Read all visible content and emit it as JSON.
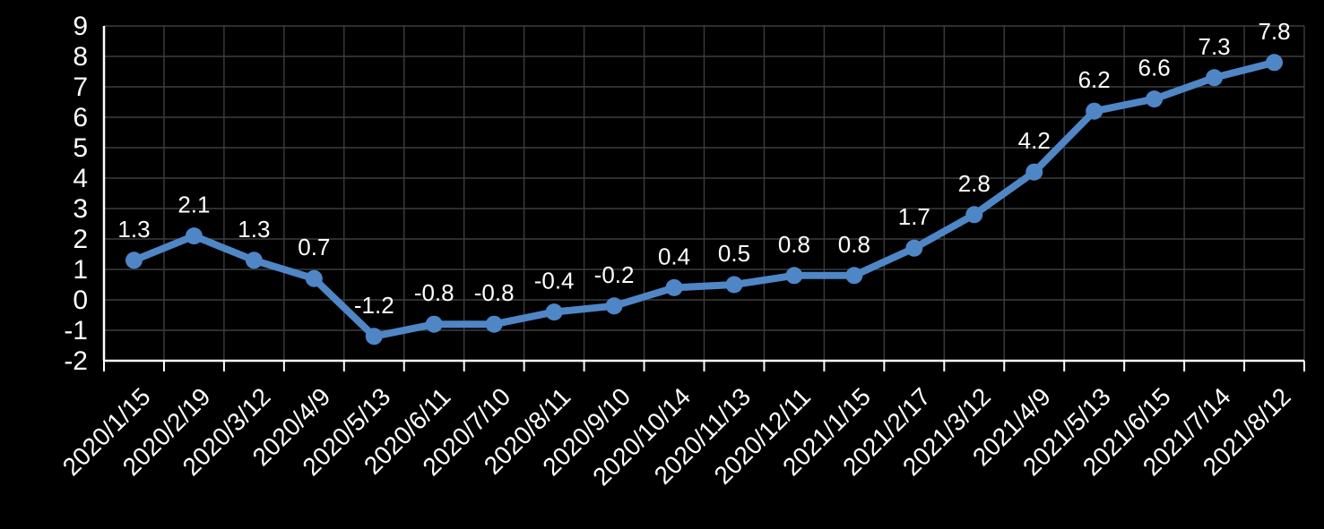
{
  "chart_data": {
    "type": "line",
    "title": "",
    "xlabel": "",
    "ylabel": "",
    "categories": [
      "2020/1/15",
      "2020/2/19",
      "2020/3/12",
      "2020/4/9",
      "2020/5/13",
      "2020/6/11",
      "2020/7/10",
      "2020/8/11",
      "2020/9/10",
      "2020/10/14",
      "2020/11/13",
      "2020/12/11",
      "2021/1/15",
      "2021/2/17",
      "2021/3/12",
      "2021/4/9",
      "2021/5/13",
      "2021/6/15",
      "2021/7/14",
      "2021/8/12"
    ],
    "series": [
      {
        "name": "value",
        "values": [
          1.3,
          2.1,
          1.3,
          0.7,
          -1.2,
          -0.8,
          -0.8,
          -0.4,
          -0.2,
          0.4,
          0.5,
          0.8,
          0.8,
          1.7,
          2.8,
          4.2,
          6.2,
          6.6,
          7.3,
          7.8
        ]
      }
    ],
    "data_labels": [
      "1.3",
      "2.1",
      "1.3",
      "0.7",
      "-1.2",
      "-0.8",
      "-0.8",
      "-0.4",
      "-0.2",
      "0.4",
      "0.5",
      "0.8",
      "0.8",
      "1.7",
      "2.8",
      "4.2",
      "6.2",
      "6.6",
      "7.3",
      "7.8"
    ],
    "yticks": [
      "-2",
      "-1",
      "0",
      "1",
      "2",
      "3",
      "4",
      "5",
      "6",
      "7",
      "8",
      "9"
    ],
    "ylim": [
      -2,
      9
    ],
    "ytick_interval": 1,
    "grid": true,
    "legend": "none",
    "marker": "circle",
    "x_label_rotation_deg": 45
  },
  "colors": {
    "background": "#000000",
    "series_line": "#4F86C6",
    "series_marker": "#4F86C6",
    "gridline": "#3D3D3D",
    "axis_line": "#FFFFFF",
    "tick_label": "#FFFFFF",
    "data_label": "#FFFFFF"
  }
}
